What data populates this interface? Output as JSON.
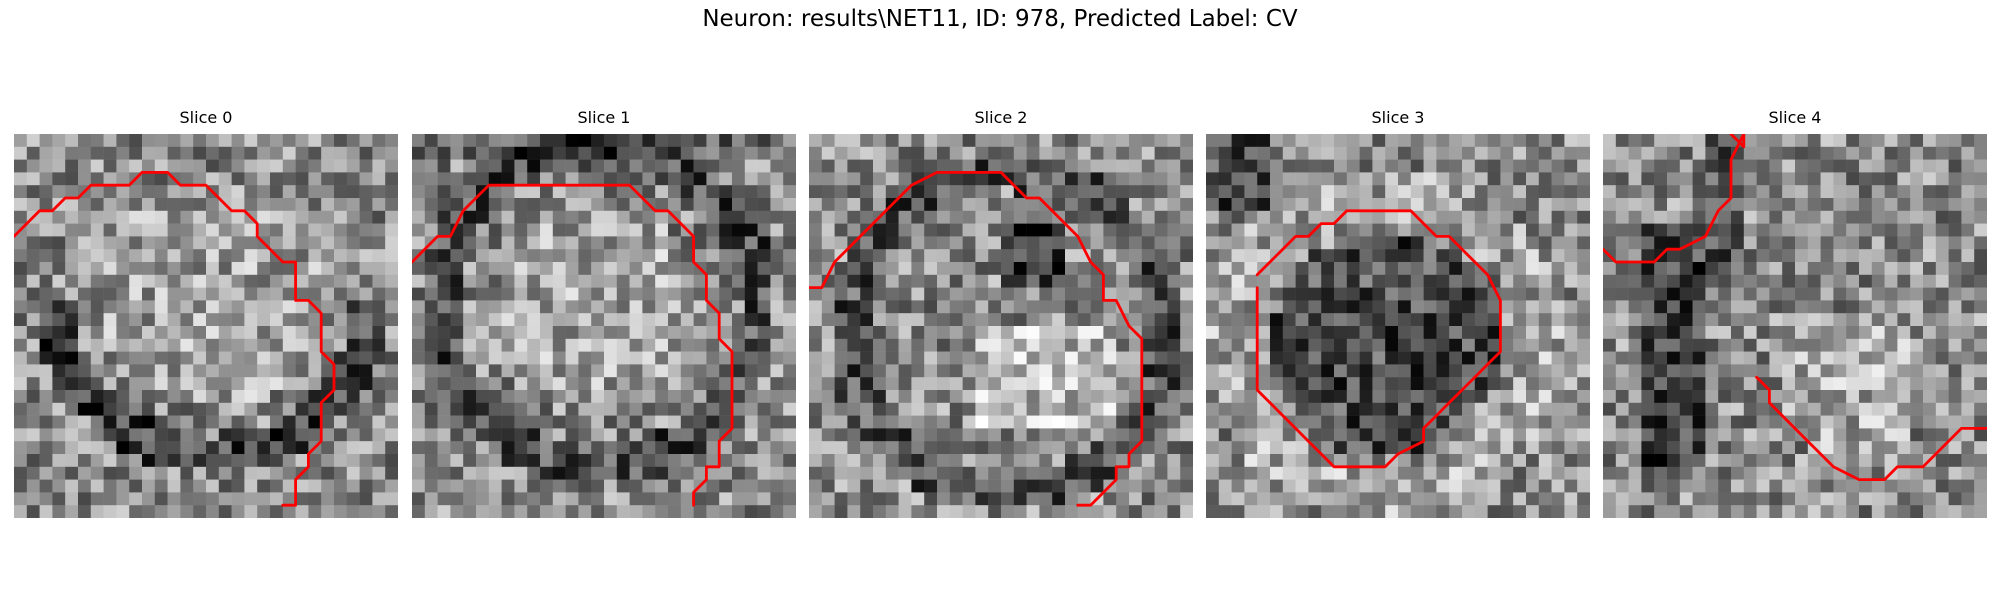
{
  "figure": {
    "title": "Neuron: results\\NET11, ID: 978, Predicted Label: CV",
    "colormap": "gray",
    "contour_color": "#ff0000",
    "grid_size": 30
  },
  "panels": [
    {
      "title": "Slice 0",
      "contour": [
        [
          0,
          8
        ],
        [
          2,
          6
        ],
        [
          3,
          6
        ],
        [
          4,
          5
        ],
        [
          5,
          5
        ],
        [
          6,
          4
        ],
        [
          9,
          4
        ],
        [
          10,
          3
        ],
        [
          12,
          3
        ],
        [
          13,
          4
        ],
        [
          15,
          4
        ],
        [
          17,
          6
        ],
        [
          18,
          6
        ],
        [
          19,
          7
        ],
        [
          19,
          8
        ],
        [
          21,
          10
        ],
        [
          22,
          10
        ],
        [
          22,
          13
        ],
        [
          23,
          13
        ],
        [
          24,
          14
        ],
        [
          24,
          17
        ],
        [
          25,
          18
        ],
        [
          25,
          20
        ],
        [
          24,
          21
        ],
        [
          24,
          24
        ],
        [
          23,
          25
        ],
        [
          23,
          26
        ],
        [
          22,
          27
        ],
        [
          22,
          29
        ],
        [
          21,
          29
        ]
      ]
    },
    {
      "title": "Slice 1",
      "contour": [
        [
          0,
          10
        ],
        [
          2,
          8
        ],
        [
          3,
          8
        ],
        [
          4,
          6
        ],
        [
          5,
          5
        ],
        [
          6,
          4
        ],
        [
          17,
          4
        ],
        [
          19,
          6
        ],
        [
          20,
          6
        ],
        [
          22,
          8
        ],
        [
          22,
          10
        ],
        [
          23,
          11
        ],
        [
          23,
          13
        ],
        [
          24,
          14
        ],
        [
          24,
          16
        ],
        [
          25,
          17
        ],
        [
          25,
          23
        ],
        [
          24,
          24
        ],
        [
          24,
          26
        ],
        [
          23,
          26
        ],
        [
          23,
          27
        ],
        [
          22,
          28
        ],
        [
          22,
          29
        ]
      ]
    },
    {
      "title": "Slice 2",
      "contour": [
        [
          0,
          12
        ],
        [
          1,
          12
        ],
        [
          2,
          10
        ],
        [
          3,
          9
        ],
        [
          4,
          8
        ],
        [
          5,
          7
        ],
        [
          6,
          6
        ],
        [
          7,
          5
        ],
        [
          8,
          4
        ],
        [
          10,
          3
        ],
        [
          15,
          3
        ],
        [
          16,
          4
        ],
        [
          17,
          5
        ],
        [
          18,
          5
        ],
        [
          20,
          7
        ],
        [
          21,
          8
        ],
        [
          22,
          10
        ],
        [
          23,
          11
        ],
        [
          23,
          13
        ],
        [
          24,
          13
        ],
        [
          25,
          15
        ],
        [
          26,
          16
        ],
        [
          26,
          24
        ],
        [
          25,
          25
        ],
        [
          25,
          26
        ],
        [
          24,
          26
        ],
        [
          24,
          27
        ],
        [
          22,
          29
        ],
        [
          21,
          29
        ]
      ]
    },
    {
      "title": "Slice 3",
      "contour": [
        [
          4,
          11
        ],
        [
          5,
          10
        ],
        [
          6,
          9
        ],
        [
          7,
          8
        ],
        [
          8,
          8
        ],
        [
          9,
          7
        ],
        [
          10,
          7
        ],
        [
          11,
          6
        ],
        [
          16,
          6
        ],
        [
          17,
          7
        ],
        [
          18,
          8
        ],
        [
          19,
          8
        ],
        [
          22,
          11
        ],
        [
          23,
          13
        ],
        [
          23,
          17
        ],
        [
          22,
          18
        ],
        [
          21,
          19
        ],
        [
          20,
          20
        ],
        [
          19,
          21
        ],
        [
          18,
          22
        ],
        [
          17,
          23
        ],
        [
          17,
          24
        ],
        [
          15,
          25
        ],
        [
          14,
          26
        ],
        [
          12,
          26
        ],
        [
          10,
          26
        ],
        [
          9,
          25
        ],
        [
          8,
          24
        ],
        [
          7,
          23
        ],
        [
          6,
          22
        ],
        [
          5,
          21
        ],
        [
          4,
          20
        ],
        [
          4,
          12
        ]
      ]
    },
    {
      "title": "Slice 4",
      "contour": [
        [
          0,
          9
        ],
        [
          1,
          10
        ],
        [
          4,
          10
        ],
        [
          5,
          9
        ],
        [
          6,
          9
        ],
        [
          8,
          8
        ],
        [
          9,
          6
        ],
        [
          10,
          5
        ],
        [
          10,
          2
        ],
        [
          11,
          0
        ],
        [
          11,
          1
        ],
        [
          10,
          0
        ]
      ],
      "contour2": [
        [
          12,
          19
        ],
        [
          13,
          20
        ],
        [
          13,
          21
        ],
        [
          14,
          22
        ],
        [
          16,
          24
        ],
        [
          17,
          25
        ],
        [
          18,
          26
        ],
        [
          20,
          27
        ],
        [
          22,
          27
        ],
        [
          23,
          26
        ],
        [
          25,
          26
        ],
        [
          26,
          25
        ],
        [
          28,
          23
        ],
        [
          30,
          23
        ]
      ]
    }
  ]
}
